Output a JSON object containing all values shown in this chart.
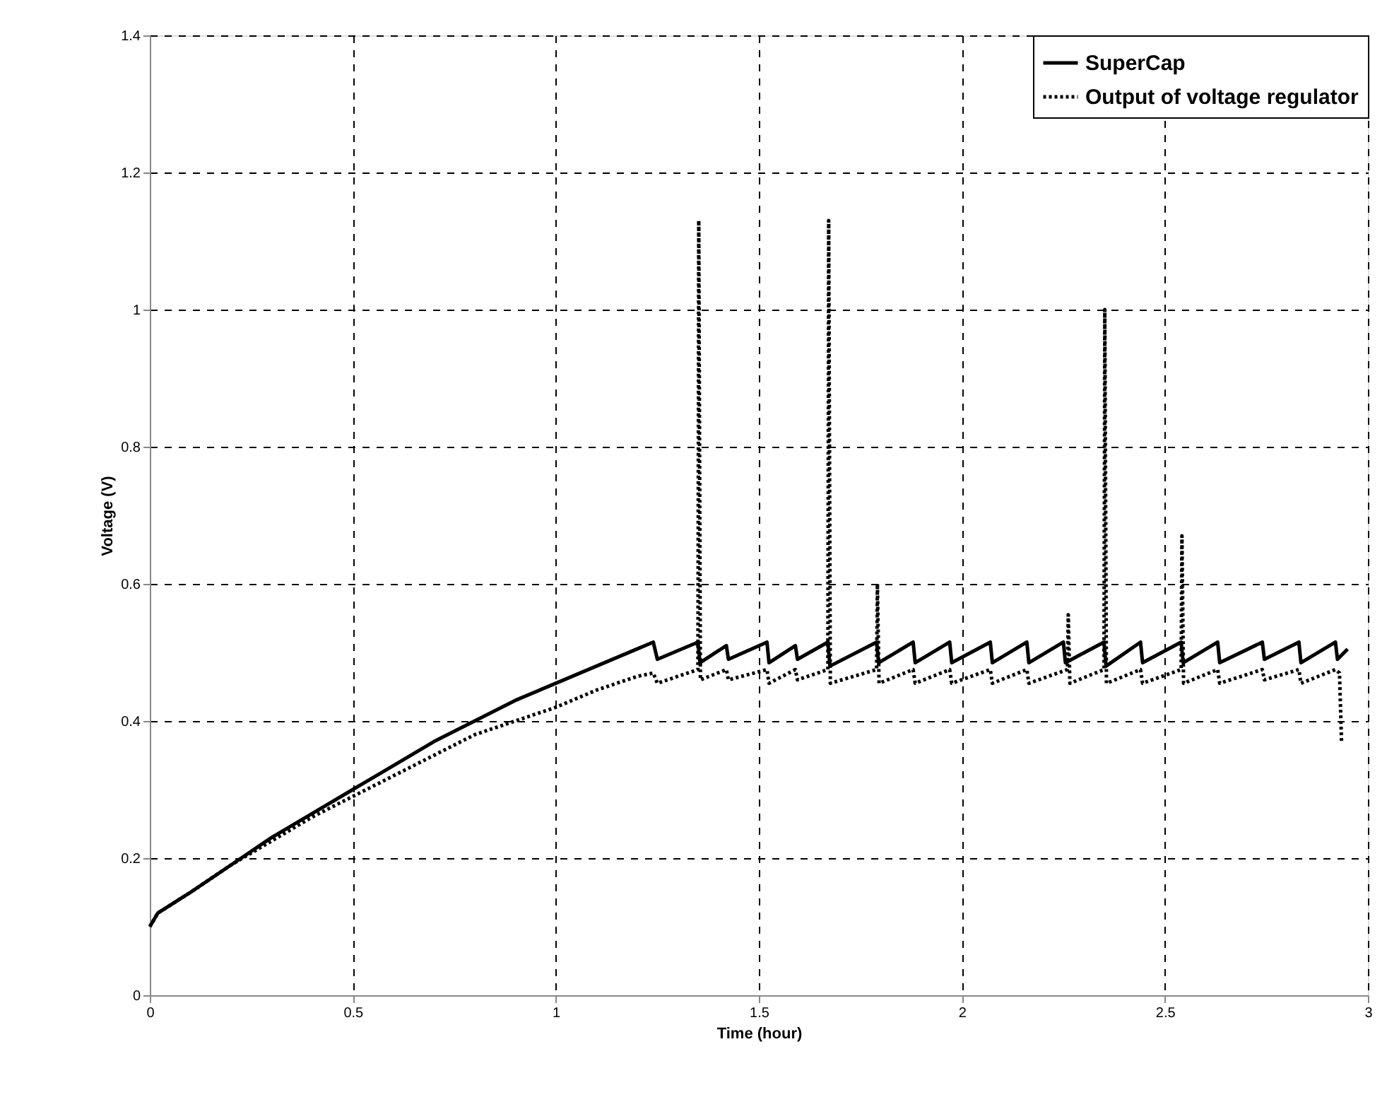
{
  "chart_data": {
    "type": "line",
    "xlabel": "Time (hour)",
    "ylabel": "Voltage (V)",
    "xlim": [
      0,
      3
    ],
    "xticks": [
      0,
      0.5,
      1,
      1.5,
      2,
      2.5,
      3
    ],
    "ylim": [
      0,
      1.4
    ],
    "yticks": [
      0,
      0.2,
      0.4,
      0.6,
      0.8,
      1,
      1.2,
      1.4
    ],
    "grid": true,
    "legend": "top right",
    "marker": "none",
    "series": [
      {
        "name": "SuperCap",
        "color": "#000000",
        "line_style": "solid",
        "x": [
          0,
          0.02,
          0.1,
          0.2,
          0.3,
          0.4,
          0.5,
          0.6,
          0.7,
          0.8,
          0.9,
          1.0,
          1.1,
          1.2,
          1.24,
          1.25,
          1.35,
          1.355,
          1.42,
          1.425,
          1.52,
          1.525,
          1.59,
          1.595,
          1.67,
          1.675,
          1.79,
          1.795,
          1.88,
          1.885,
          1.97,
          1.975,
          2.07,
          2.075,
          2.16,
          2.165,
          2.25,
          2.255,
          2.35,
          2.355,
          2.44,
          2.445,
          2.54,
          2.545,
          2.63,
          2.635,
          2.74,
          2.745,
          2.83,
          2.835,
          2.92,
          2.925,
          2.95
        ],
        "values": [
          0.1,
          0.12,
          0.15,
          0.19,
          0.23,
          0.265,
          0.3,
          0.335,
          0.37,
          0.4,
          0.43,
          0.455,
          0.48,
          0.505,
          0.515,
          0.49,
          0.515,
          0.485,
          0.51,
          0.49,
          0.515,
          0.485,
          0.51,
          0.49,
          0.515,
          0.48,
          0.515,
          0.485,
          0.515,
          0.485,
          0.515,
          0.485,
          0.515,
          0.485,
          0.515,
          0.485,
          0.515,
          0.485,
          0.515,
          0.48,
          0.515,
          0.485,
          0.515,
          0.485,
          0.515,
          0.485,
          0.515,
          0.49,
          0.515,
          0.485,
          0.515,
          0.49,
          0.505
        ]
      },
      {
        "name": "Output of voltage regulator",
        "color": "#000000",
        "line_style": "dotted",
        "x": [
          0,
          0.02,
          0.1,
          0.2,
          0.3,
          0.4,
          0.5,
          0.6,
          0.7,
          0.8,
          0.9,
          1.0,
          1.1,
          1.2,
          1.24,
          1.25,
          1.35,
          1.352,
          1.356,
          1.42,
          1.425,
          1.52,
          1.525,
          1.59,
          1.595,
          1.67,
          1.672,
          1.676,
          1.79,
          1.792,
          1.796,
          1.88,
          1.885,
          1.97,
          1.975,
          2.07,
          2.075,
          2.16,
          2.165,
          2.26,
          2.262,
          2.266,
          2.35,
          2.352,
          2.356,
          2.44,
          2.445,
          2.54,
          2.542,
          2.546,
          2.63,
          2.635,
          2.74,
          2.745,
          2.83,
          2.835,
          2.92,
          2.93,
          2.935
        ],
        "values": [
          0.1,
          0.12,
          0.15,
          0.19,
          0.225,
          0.26,
          0.29,
          0.32,
          0.35,
          0.38,
          0.4,
          0.42,
          0.445,
          0.465,
          0.47,
          0.455,
          0.475,
          1.13,
          0.46,
          0.475,
          0.46,
          0.475,
          0.455,
          0.475,
          0.46,
          0.475,
          1.13,
          0.455,
          0.475,
          0.6,
          0.455,
          0.475,
          0.455,
          0.475,
          0.455,
          0.475,
          0.455,
          0.475,
          0.455,
          0.475,
          0.555,
          0.455,
          0.475,
          1.0,
          0.455,
          0.475,
          0.455,
          0.475,
          0.67,
          0.455,
          0.475,
          0.455,
          0.475,
          0.46,
          0.475,
          0.455,
          0.475,
          0.47,
          0.37
        ]
      }
    ]
  }
}
